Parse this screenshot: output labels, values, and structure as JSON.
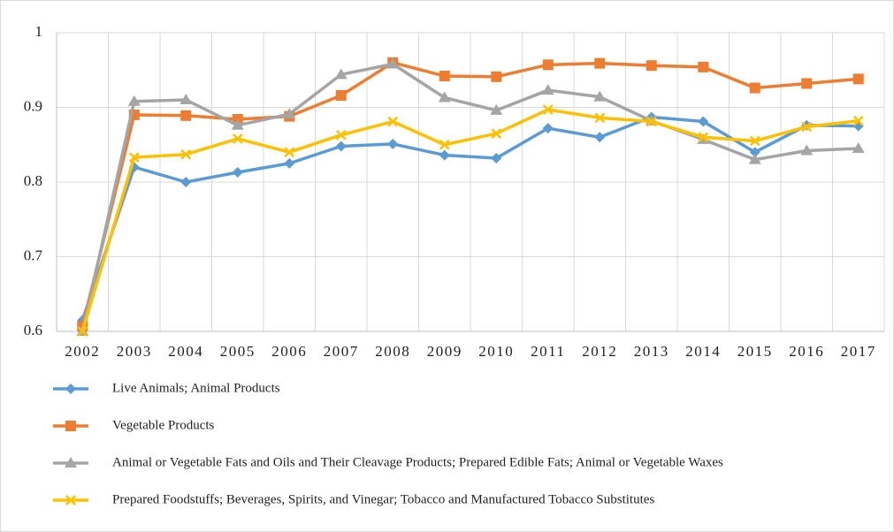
{
  "chart_data": {
    "type": "line",
    "categories": [
      "2002",
      "2003",
      "2004",
      "2005",
      "2006",
      "2007",
      "2008",
      "2009",
      "2010",
      "2011",
      "2012",
      "2013",
      "2014",
      "2015",
      "2016",
      "2017"
    ],
    "series": [
      {
        "name": "Live Animals; Animal Products",
        "color": "#5b9bd5",
        "marker": "diamond",
        "values": [
          0.615,
          0.82,
          0.8,
          0.813,
          0.825,
          0.848,
          0.851,
          0.836,
          0.832,
          0.872,
          0.86,
          0.887,
          0.881,
          0.84,
          0.876,
          0.875
        ]
      },
      {
        "name": "Vegetable Products",
        "color": "#ed7d31",
        "marker": "square",
        "values": [
          0.607,
          0.89,
          0.889,
          0.884,
          0.888,
          0.916,
          0.96,
          0.942,
          0.941,
          0.957,
          0.959,
          0.956,
          0.954,
          0.926,
          0.932,
          0.938
        ]
      },
      {
        "name": "Animal or Vegetable Fats and Oils and Their Cleavage Products; Prepared Edible Fats; Animal or Vegetable Waxes",
        "color": "#a5a5a5",
        "marker": "triangle",
        "values": [
          0.6,
          0.908,
          0.91,
          0.876,
          0.891,
          0.944,
          0.958,
          0.913,
          0.896,
          0.923,
          0.914,
          0.882,
          0.857,
          0.83,
          0.842,
          0.845
        ]
      },
      {
        "name": "Prepared Foodstuffs; Beverages, Spirits, and Vinegar; Tobacco and Manufactured Tobacco Substitutes",
        "color": "#ffc000",
        "marker": "x",
        "values": [
          0.6,
          0.833,
          0.837,
          0.858,
          0.84,
          0.863,
          0.881,
          0.85,
          0.865,
          0.897,
          0.886,
          0.881,
          0.86,
          0.855,
          0.874,
          0.882
        ]
      }
    ],
    "ylim": [
      0.6,
      1
    ],
    "yticks": [
      0.6,
      0.7,
      0.8,
      0.9,
      1
    ],
    "grid": true
  }
}
